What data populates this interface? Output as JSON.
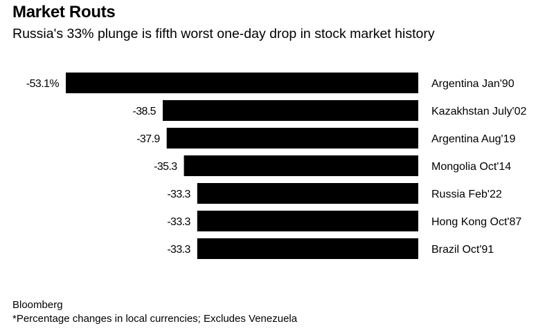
{
  "header": {
    "title": "Market Routs",
    "subtitle": "Russia's 33% plunge is fifth worst one-day drop in stock market history"
  },
  "footer": {
    "source": "Bloomberg",
    "note": "*Percentage changes in local currencies; Excludes Venezuela"
  },
  "chart_data": {
    "type": "bar",
    "orientation": "horizontal",
    "title": "Market Routs",
    "subtitle": "Russia's 33% plunge is fifth worst one-day drop in stock market history",
    "categories": [
      "Argentina Jan'90",
      "Kazakhstan July'02",
      "Argentina Aug'19",
      "Mongolia Oct'14",
      "Russia Feb'22",
      "Hong Kong Oct'87",
      "Brazil Oct'91"
    ],
    "values": [
      -53.1,
      -38.5,
      -37.9,
      -35.3,
      -33.3,
      -33.3,
      -33.3
    ],
    "value_labels": [
      "-53.1%",
      "-38.5",
      "-37.9",
      "-35.3",
      "-33.3",
      "-33.3",
      "-33.3"
    ],
    "unit": "%",
    "bar_color": "#000000",
    "xlim": [
      -53.1,
      0
    ],
    "grid": false,
    "legend": "none",
    "xlabel": "",
    "ylabel": ""
  }
}
